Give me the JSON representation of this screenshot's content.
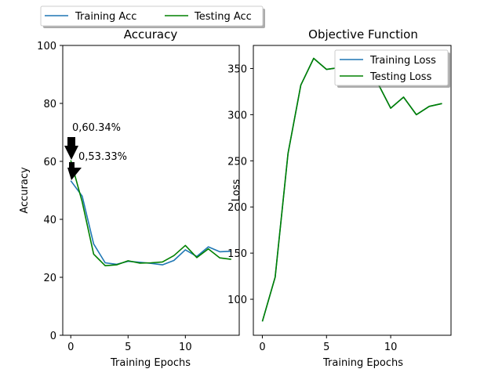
{
  "top_legend": {
    "entries": [
      "Training Acc",
      "Testing Acc"
    ]
  },
  "colors": {
    "training": "#1f77b4",
    "testing": "#008000",
    "annotation_arrow": "#000000"
  },
  "chart_data": [
    {
      "type": "line",
      "title": "Accuracy",
      "xlabel": "Training Epochs",
      "ylabel": "Accuracy",
      "xlim": [
        -0.7,
        14.7
      ],
      "ylim": [
        0,
        100
      ],
      "xticks": [
        0,
        5,
        10
      ],
      "yticks": [
        0,
        20,
        40,
        60,
        80,
        100
      ],
      "x": [
        0,
        1,
        2,
        3,
        4,
        5,
        6,
        7,
        8,
        9,
        10,
        11,
        12,
        13,
        14
      ],
      "series": [
        {
          "name": "Training Acc",
          "values": [
            53.33,
            48,
            31.5,
            25,
            24.5,
            25.5,
            25.2,
            24.8,
            24.3,
            25.8,
            29.5,
            27.2,
            30.5,
            28.8,
            29
          ]
        },
        {
          "name": "Testing Acc",
          "values": [
            60.34,
            46,
            28,
            24,
            24.3,
            25.7,
            24.9,
            25,
            25.3,
            27.5,
            31,
            26.8,
            29.8,
            26.7,
            26.2
          ]
        }
      ],
      "legend": "top-center-outside",
      "annotations": [
        {
          "text": "0,60.34%",
          "x": 0,
          "y": 60.34
        },
        {
          "text": "0,53.33%",
          "x": 0,
          "y": 53.33
        }
      ]
    },
    {
      "type": "line",
      "title": "Objective Function",
      "xlabel": "Training Epochs",
      "ylabel": "Loss",
      "xlim": [
        -0.7,
        14.7
      ],
      "ylim": [
        61,
        375
      ],
      "xticks": [
        0,
        5,
        10
      ],
      "yticks": [
        100,
        150,
        200,
        250,
        300,
        350
      ],
      "x": [
        0,
        1,
        2,
        3,
        4,
        5,
        6,
        7,
        8,
        9,
        10,
        11,
        12,
        13,
        14
      ],
      "series": [
        {
          "name": "Training Loss",
          "values": [
            76,
            124,
            258,
            332,
            361,
            349,
            351,
            348,
            345,
            334,
            307,
            319,
            300,
            309,
            312
          ]
        },
        {
          "name": "Testing Loss",
          "values": [
            76,
            124,
            258,
            332,
            361,
            349,
            351,
            348,
            345,
            334,
            307,
            319,
            300,
            309,
            312
          ]
        }
      ],
      "legend": "top-right"
    }
  ]
}
